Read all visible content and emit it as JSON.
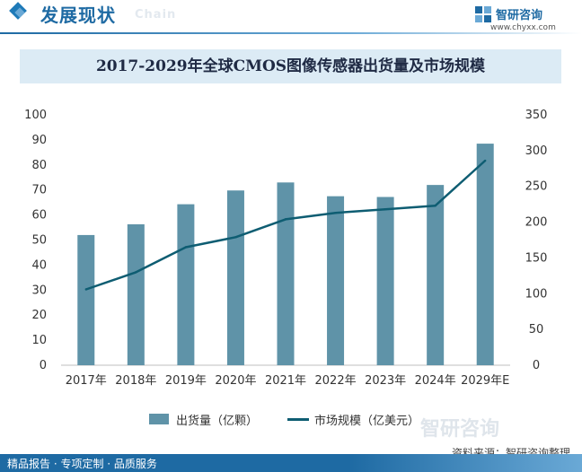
{
  "header": {
    "title": "发展现状",
    "subtitle": "Chain",
    "logo_name": "智研咨询",
    "logo_url": "www.chyxx.com",
    "logo_icon": "zhiyan-logo-icon"
  },
  "chart_data": {
    "type": "bar",
    "title": "2017-2029年全球CMOS图像传感器出货量及市场规模",
    "categories": [
      "2017年",
      "2018年",
      "2019年",
      "2020年",
      "2021年",
      "2022年",
      "2023年",
      "2024年",
      "2029年E"
    ],
    "series": [
      {
        "name": "出货量（亿颗）",
        "type": "bar",
        "axis": "left",
        "color": "#5f93a8",
        "values": [
          52.0,
          56.3,
          64.3,
          69.8,
          73.0,
          67.5,
          67.2,
          72.0,
          88.5
        ]
      },
      {
        "name": "市场规模（亿美元）",
        "type": "line",
        "axis": "right",
        "color": "#0e5d72",
        "values": [
          106,
          130,
          165,
          179,
          204,
          213,
          218,
          223,
          286
        ]
      }
    ],
    "y_left": {
      "min": 0,
      "max": 100,
      "step": 10,
      "ticks": [
        "0",
        "10",
        "20",
        "30",
        "40",
        "50",
        "60",
        "70",
        "80",
        "90",
        "100"
      ]
    },
    "y_right": {
      "min": 0,
      "max": 350,
      "step": 50,
      "ticks": [
        "0",
        "50",
        "100",
        "150",
        "200",
        "250",
        "300",
        "350"
      ]
    },
    "grid": false,
    "legend_position": "bottom"
  },
  "source": "资料来源：智研咨询整理",
  "watermark": "智研咨询",
  "footer": "精品报告 · 专项定制 · 品质服务"
}
